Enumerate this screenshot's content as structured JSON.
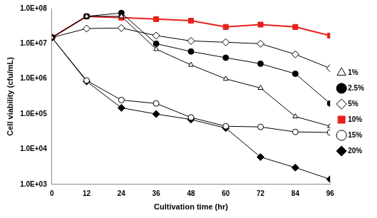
{
  "chart_data": {
    "type": "line",
    "x_label": "Cultivation time (hr)",
    "y_label": "Cell viability (cfu/mL)",
    "x": [
      0,
      12,
      24,
      36,
      48,
      60,
      72,
      84,
      96
    ],
    "xlim": [
      0,
      96
    ],
    "xticks": [
      0,
      12,
      24,
      36,
      48,
      60,
      72,
      84,
      96
    ],
    "ylim": [
      1000,
      100000000
    ],
    "yticks": [
      {
        "value": 1000,
        "label": "1.0E+03"
      },
      {
        "value": 10000,
        "label": "1.0E+04"
      },
      {
        "value": 100000,
        "label": "1.0E+05"
      },
      {
        "value": 1000000,
        "label": "1.0E+06"
      },
      {
        "value": 10000000,
        "label": "1.0E+07"
      },
      {
        "value": 100000000,
        "label": "1.0E+08"
      }
    ],
    "log": "y",
    "grid": false,
    "legend": "right",
    "series": [
      {
        "name": "1%",
        "color": "#000000",
        "marker": "triangle-open",
        "values": [
          15000000,
          60000000,
          60000000,
          7000000,
          2500000,
          1000000,
          550000,
          85000,
          45000
        ]
      },
      {
        "name": "2.5%",
        "color": "#000000",
        "marker": "circle",
        "values": [
          15000000,
          60000000,
          75000000,
          10000000,
          6000000,
          4000000,
          2700000,
          1400000,
          200000
        ]
      },
      {
        "name": "5%",
        "color": "#000000",
        "marker": "diamond-open",
        "values": [
          15000000,
          27000000,
          28000000,
          17000000,
          12000000,
          11000000,
          10000000,
          5000000,
          2000000
        ]
      },
      {
        "name": "10%",
        "color": "#e8201c",
        "marker": "square",
        "values": [
          15000000,
          60000000,
          55000000,
          50000000,
          45000000,
          30000000,
          35000000,
          30000000,
          17000000
        ]
      },
      {
        "name": "15%",
        "color": "#000000",
        "marker": "circle-open",
        "values": [
          15000000,
          900000,
          250000,
          200000,
          80000,
          45000,
          43000,
          31000,
          30000
        ]
      },
      {
        "name": "20%",
        "color": "#000000",
        "marker": "diamond",
        "values": [
          15000000,
          850000,
          150000,
          100000,
          70000,
          40000,
          6000,
          3000,
          1400
        ]
      }
    ]
  }
}
